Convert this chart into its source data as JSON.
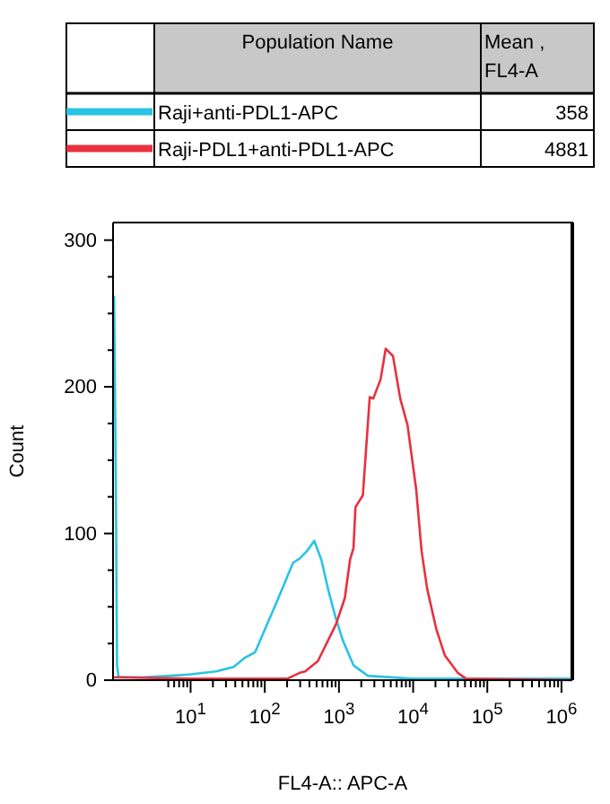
{
  "chart_data": {
    "type": "line",
    "xlabel": "FL4-A:: APC-A",
    "ylabel": "Count",
    "legend_title": "Population Name",
    "legend": "top",
    "annotations": [
      "Mean , FL4-A",
      "358",
      "4881"
    ],
    "log": "x",
    "xlim": [
      0.9,
      1400000
    ],
    "ylim": [
      0,
      312
    ],
    "xticks": [
      {
        "value": 10,
        "label": "10$^{1}$"
      },
      {
        "value": 100,
        "label": "10$^{2}$"
      },
      {
        "value": 1000,
        "label": "10$^{3}$"
      },
      {
        "value": 10000,
        "label": "10$^{4}$"
      },
      {
        "value": 100000,
        "label": "10$^{5}$"
      },
      {
        "value": 1000000,
        "label": "10$^{6}$"
      },
      {
        "value": 5,
        "label": null
      },
      {
        "value": 6,
        "label": null
      },
      {
        "value": 7,
        "label": null
      },
      {
        "value": 8,
        "label": null
      },
      {
        "value": 9,
        "label": null
      },
      {
        "value": 20,
        "label": null
      },
      {
        "value": 30,
        "label": null
      },
      {
        "value": 40,
        "label": null
      },
      {
        "value": 50,
        "label": null
      },
      {
        "value": 60,
        "label": null
      },
      {
        "value": 70,
        "label": null
      },
      {
        "value": 80,
        "label": null
      },
      {
        "value": 90,
        "label": null
      },
      {
        "value": 200,
        "label": null
      },
      {
        "value": 300,
        "label": null
      },
      {
        "value": 400,
        "label": null
      },
      {
        "value": 500,
        "label": null
      },
      {
        "value": 600,
        "label": null
      },
      {
        "value": 700,
        "label": null
      },
      {
        "value": 800,
        "label": null
      },
      {
        "value": 900,
        "label": null
      },
      {
        "value": 2000,
        "label": null
      },
      {
        "value": 3000,
        "label": null
      },
      {
        "value": 4000,
        "label": null
      },
      {
        "value": 5000,
        "label": null
      },
      {
        "value": 6000,
        "label": null
      },
      {
        "value": 7000,
        "label": null
      },
      {
        "value": 8000,
        "label": null
      },
      {
        "value": 9000,
        "label": null
      },
      {
        "value": 20000,
        "label": null
      },
      {
        "value": 30000,
        "label": null
      },
      {
        "value": 40000,
        "label": null
      },
      {
        "value": 50000,
        "label": null
      },
      {
        "value": 60000,
        "label": null
      },
      {
        "value": 70000,
        "label": null
      },
      {
        "value": 80000,
        "label": null
      },
      {
        "value": 90000,
        "label": null
      },
      {
        "value": 200000,
        "label": null
      },
      {
        "value": 300000,
        "label": null
      },
      {
        "value": 400000,
        "label": null
      },
      {
        "value": 500000,
        "label": null
      },
      {
        "value": 600000,
        "label": null
      },
      {
        "value": 700000,
        "label": null
      },
      {
        "value": 800000,
        "label": null
      },
      {
        "value": 900000,
        "label": null
      }
    ],
    "yticks": [
      0,
      {
        "value": 25,
        "label": null
      },
      {
        "value": 50,
        "label": null
      },
      {
        "value": 75,
        "label": null
      },
      100,
      {
        "value": 125,
        "label": null
      },
      {
        "value": 150,
        "label": null
      },
      {
        "value": 175,
        "label": null
      },
      200,
      {
        "value": 225,
        "label": null
      },
      {
        "value": 250,
        "label": null
      },
      {
        "value": 275,
        "label": null
      },
      300
    ],
    "series": [
      {
        "name": "Raji+anti-PDL1-APC",
        "color": "#29c3e5",
        "x": [
          0.93,
          0.98,
          1.02,
          1.07,
          2.3,
          5.4,
          10,
          22,
          38,
          53,
          74,
          103,
          150,
          240,
          296,
          370,
          465,
          580,
          730,
          910,
          1130,
          1580,
          2450,
          9800,
          1400000
        ],
        "values": [
          262,
          139,
          10,
          2,
          2,
          3,
          4,
          6,
          9,
          15,
          19,
          36,
          55,
          80,
          83,
          88,
          95,
          82,
          60,
          42,
          27,
          10,
          3,
          1,
          1
        ]
      },
      {
        "name": "Raji-PDL1+anti-PDL1-APC",
        "color": "#e8303f",
        "x": [
          0.93,
          10,
          50,
          97,
          200,
          296,
          350,
          520,
          910,
          1200,
          1410,
          1570,
          1670,
          2100,
          2600,
          2900,
          3640,
          4270,
          5350,
          6700,
          8400,
          11000,
          13000,
          15500,
          20500,
          26700,
          40000,
          52000,
          1400000
        ],
        "values": [
          2,
          1,
          1,
          1,
          1,
          5,
          6,
          13,
          38,
          56,
          82,
          90,
          118,
          126,
          193,
          192,
          205,
          226,
          221,
          192,
          174,
          130,
          88,
          62,
          35,
          17,
          5,
          1,
          0
        ]
      }
    ]
  }
}
